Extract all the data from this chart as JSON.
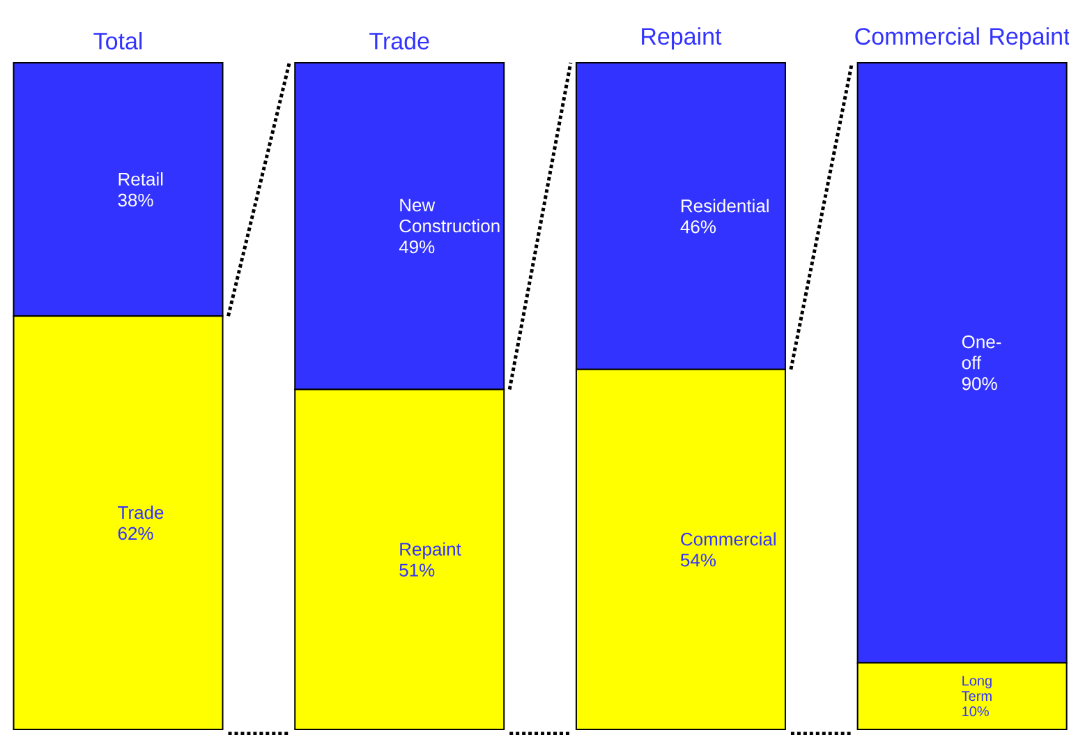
{
  "chart_data": {
    "type": "bar",
    "stacked": true,
    "tick_labels": "x",
    "categories": [
      "Total",
      "Trade",
      "Repaint",
      "Commercial Repaint"
    ],
    "series": [
      {
        "color": "#ffff00",
        "values": [
          62,
          51,
          54,
          10
        ],
        "value_labels": [
          "Trade 62%",
          "Repaint 51%",
          "Commercial 54%",
          "Long Term 10%"
        ]
      },
      {
        "color": "#3333ff",
        "values": [
          38,
          49,
          46,
          90
        ],
        "value_labels": [
          "Retail 38%",
          "New Construction 49%",
          "Residential 46%",
          "One-off 90%"
        ]
      }
    ]
  }
}
